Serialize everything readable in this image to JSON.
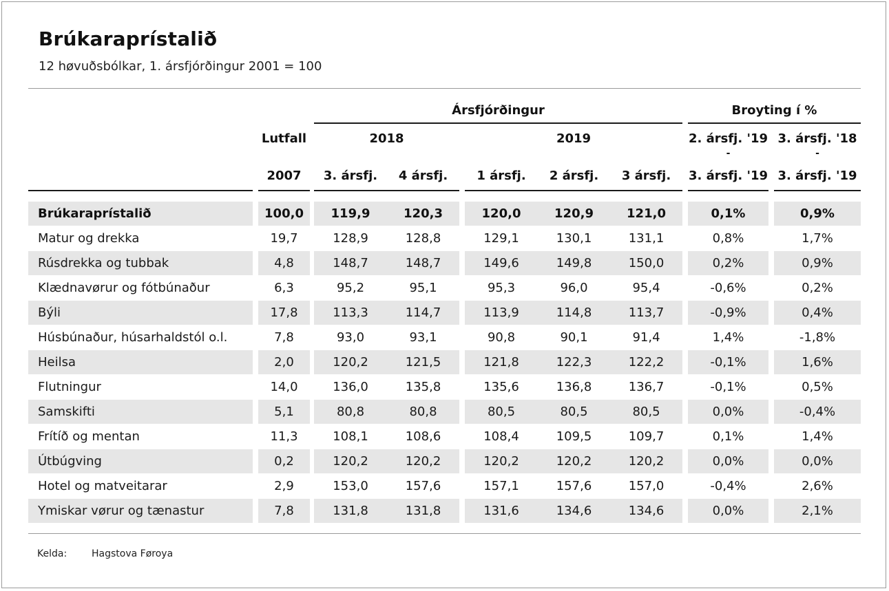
{
  "title": "Brúkaraprístalið",
  "subtitle": "12 høvuðsbólkar, 1. ársfjórðingur 2001 = 100",
  "headers": {
    "group_quarter": "Ársfjórðingur",
    "group_change": "Broyting í %",
    "weight_top": "Lutfall",
    "weight_year": "2007",
    "year_2018": "2018",
    "year_2019": "2019",
    "q3_2018": "3. ársfj.",
    "q4_2018": "4 ársfj.",
    "q1_2019": "1 ársfj.",
    "q2_2019": "2 ársfj.",
    "q3_2019": "3 ársfj.",
    "change1_line1": "2. ársfj. '19",
    "change1_dash": "-",
    "change1_line2": "3. ársfj. '19",
    "change2_line1": "3. ársfj. '18",
    "change2_dash": "-",
    "change2_line2": "3. ársfj. '19"
  },
  "rows": [
    {
      "label": "Brúkaraprístalið",
      "weight": "100,0",
      "q3_18": "119,9",
      "q4_18": "120,3",
      "q1_19": "120,0",
      "q2_19": "120,9",
      "q3_19": "121,0",
      "ch1": "0,1%",
      "ch2": "0,9%"
    },
    {
      "label": "Matur og drekka",
      "weight": "19,7",
      "q3_18": "128,9",
      "q4_18": "128,8",
      "q1_19": "129,1",
      "q2_19": "130,1",
      "q3_19": "131,1",
      "ch1": "0,8%",
      "ch2": "1,7%"
    },
    {
      "label": "Rúsdrekka og tubbak",
      "weight": "4,8",
      "q3_18": "148,7",
      "q4_18": "148,7",
      "q1_19": "149,6",
      "q2_19": "149,8",
      "q3_19": "150,0",
      "ch1": "0,2%",
      "ch2": "0,9%"
    },
    {
      "label": "Klædnavørur og fótbúnaður",
      "weight": "6,3",
      "q3_18": "95,2",
      "q4_18": "95,1",
      "q1_19": "95,3",
      "q2_19": "96,0",
      "q3_19": "95,4",
      "ch1": "-0,6%",
      "ch2": "0,2%"
    },
    {
      "label": "Býli",
      "weight": "17,8",
      "q3_18": "113,3",
      "q4_18": "114,7",
      "q1_19": "113,9",
      "q2_19": "114,8",
      "q3_19": "113,7",
      "ch1": "-0,9%",
      "ch2": "0,4%"
    },
    {
      "label": "Húsbúnaður, húsarhaldstól o.l.",
      "weight": "7,8",
      "q3_18": "93,0",
      "q4_18": "93,1",
      "q1_19": "90,8",
      "q2_19": "90,1",
      "q3_19": "91,4",
      "ch1": "1,4%",
      "ch2": "-1,8%"
    },
    {
      "label": "Heilsa",
      "weight": "2,0",
      "q3_18": "120,2",
      "q4_18": "121,5",
      "q1_19": "121,8",
      "q2_19": "122,3",
      "q3_19": "122,2",
      "ch1": "-0,1%",
      "ch2": "1,6%"
    },
    {
      "label": "Flutningur",
      "weight": "14,0",
      "q3_18": "136,0",
      "q4_18": "135,8",
      "q1_19": "135,6",
      "q2_19": "136,8",
      "q3_19": "136,7",
      "ch1": "-0,1%",
      "ch2": "0,5%"
    },
    {
      "label": "Samskifti",
      "weight": "5,1",
      "q3_18": "80,8",
      "q4_18": "80,8",
      "q1_19": "80,5",
      "q2_19": "80,5",
      "q3_19": "80,5",
      "ch1": "0,0%",
      "ch2": "-0,4%"
    },
    {
      "label": "Frítíð og mentan",
      "weight": "11,3",
      "q3_18": "108,1",
      "q4_18": "108,6",
      "q1_19": "108,4",
      "q2_19": "109,5",
      "q3_19": "109,7",
      "ch1": "0,1%",
      "ch2": "1,4%"
    },
    {
      "label": "Útbúgving",
      "weight": "0,2",
      "q3_18": "120,2",
      "q4_18": "120,2",
      "q1_19": "120,2",
      "q2_19": "120,2",
      "q3_19": "120,2",
      "ch1": "0,0%",
      "ch2": "0,0%"
    },
    {
      "label": "Hotel og matveitarar",
      "weight": "2,9",
      "q3_18": "153,0",
      "q4_18": "157,6",
      "q1_19": "157,1",
      "q2_19": "157,6",
      "q3_19": "157,0",
      "ch1": "-0,4%",
      "ch2": "2,6%"
    },
    {
      "label": "Ymiskar vørur og tænastur",
      "weight": "7,8",
      "q3_18": "131,8",
      "q4_18": "131,8",
      "q1_19": "131,6",
      "q2_19": "134,6",
      "q3_19": "134,6",
      "ch1": "0,0%",
      "ch2": "2,1%"
    }
  ],
  "footer": {
    "source_label": "Kelda:",
    "source_value": "Hagstova Føroya"
  },
  "colors": {
    "stripe": "#e6e6e6",
    "rule": "#9a9a9a",
    "text": "#1a1a1a"
  }
}
